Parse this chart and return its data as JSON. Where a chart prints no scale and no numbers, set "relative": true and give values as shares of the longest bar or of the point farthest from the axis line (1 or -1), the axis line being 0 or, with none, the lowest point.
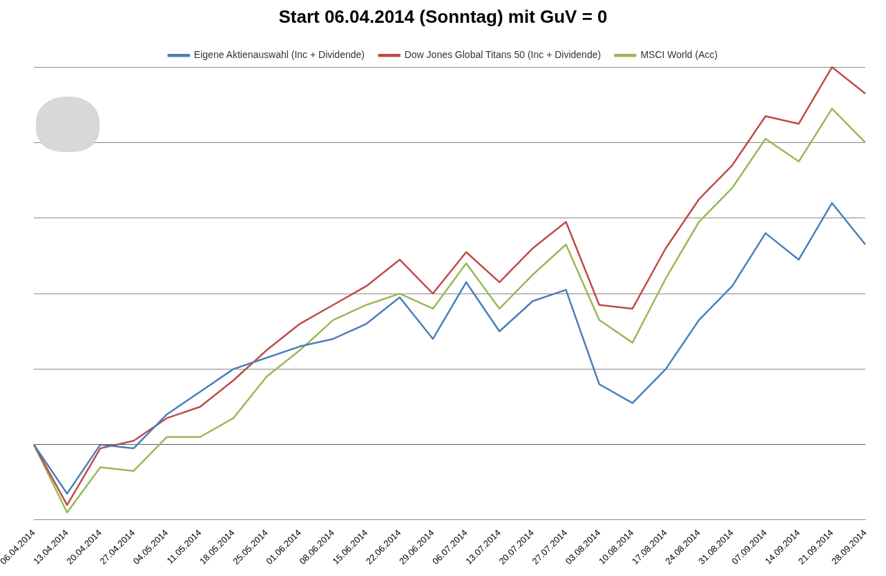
{
  "chart_data": {
    "type": "line",
    "title": "Start 06.04.2014 (Sonntag) mit GuV = 0",
    "relative": true,
    "grid": "y",
    "legend": "top",
    "marker": "none",
    "line_style": "solid",
    "categories": [
      "06.04.2014",
      "13.04.2014",
      "20.04.2014",
      "27.04.2014",
      "04.05.2014",
      "11.05.2014",
      "18.05.2014",
      "25.05.2014",
      "01.06.2014",
      "08.06.2014",
      "15.06.2014",
      "22.06.2014",
      "29.06.2014",
      "06.07.2014",
      "13.07.2014",
      "20.07.2014",
      "27.07.2014",
      "03.08.2014",
      "10.08.2014",
      "17.08.2014",
      "24.08.2014",
      "31.08.2014",
      "07.09.2014",
      "14.09.2014",
      "21.09.2014",
      "28.09.2014"
    ],
    "series": [
      {
        "name": "Eigene Aktienauswahl (Inc + Dividende)",
        "color": "#4a7ebb",
        "values": [
          0,
          -0.13,
          0.0,
          -0.01,
          0.08,
          0.14,
          0.2,
          0.23,
          0.26,
          0.28,
          0.32,
          0.39,
          0.28,
          0.43,
          0.3,
          0.38,
          0.41,
          0.16,
          0.11,
          0.2,
          0.33,
          0.42,
          0.56,
          0.49,
          0.64,
          0.53
        ]
      },
      {
        "name": "Dow Jones Global Titans 50 (Inc + Dividende)",
        "color": "#be4b48",
        "values": [
          0,
          -0.16,
          -0.01,
          0.01,
          0.07,
          0.1,
          0.17,
          0.25,
          0.32,
          0.37,
          0.42,
          0.49,
          0.4,
          0.51,
          0.43,
          0.52,
          0.59,
          0.37,
          0.36,
          0.52,
          0.65,
          0.74,
          0.87,
          0.85,
          1,
          0.93
        ]
      },
      {
        "name": "MSCI World (Acc)",
        "color": "#98b954",
        "values": [
          0,
          -0.18,
          -0.06,
          -0.07,
          0.02,
          0.02,
          0.07,
          0.18,
          0.25,
          0.33,
          0.37,
          0.4,
          0.36,
          0.48,
          0.36,
          0.45,
          0.53,
          0.33,
          0.27,
          0.44,
          0.59,
          0.68,
          0.81,
          0.75,
          0.89,
          0.8
        ]
      }
    ]
  }
}
